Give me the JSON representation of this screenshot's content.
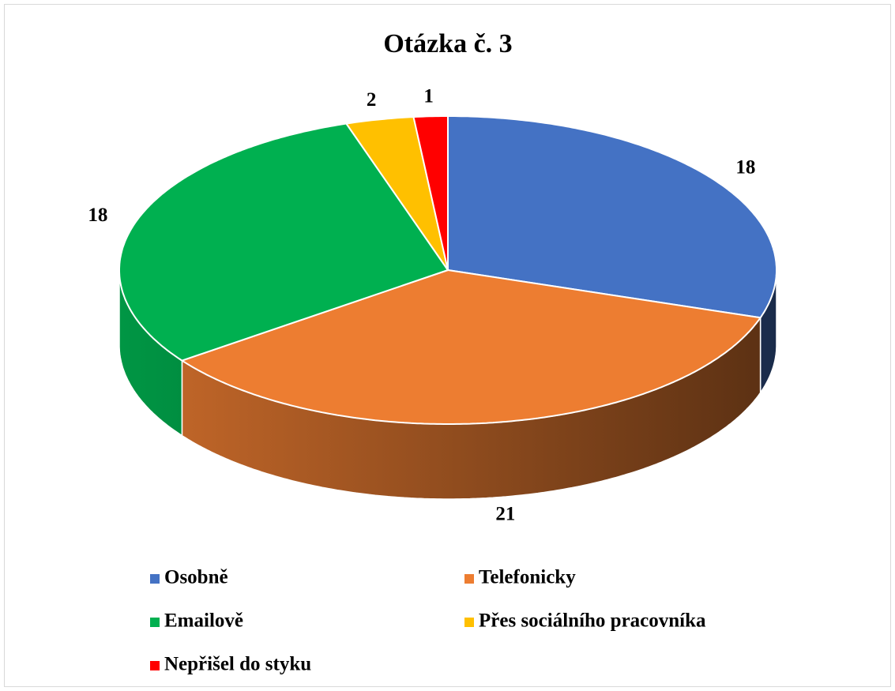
{
  "chart_data": {
    "type": "pie3d",
    "title": "Otázka č. 3",
    "categories": [
      "Osobně",
      "Telefonicky",
      "Emailově",
      "Přes sociálního pracovníka",
      "Nepřišel do styku"
    ],
    "values": [
      18,
      21,
      18,
      2,
      1
    ],
    "colors": [
      "#4472c4",
      "#ed7d31",
      "#00b050",
      "#ffc000",
      "#ff0000"
    ],
    "legend": "bottom"
  }
}
